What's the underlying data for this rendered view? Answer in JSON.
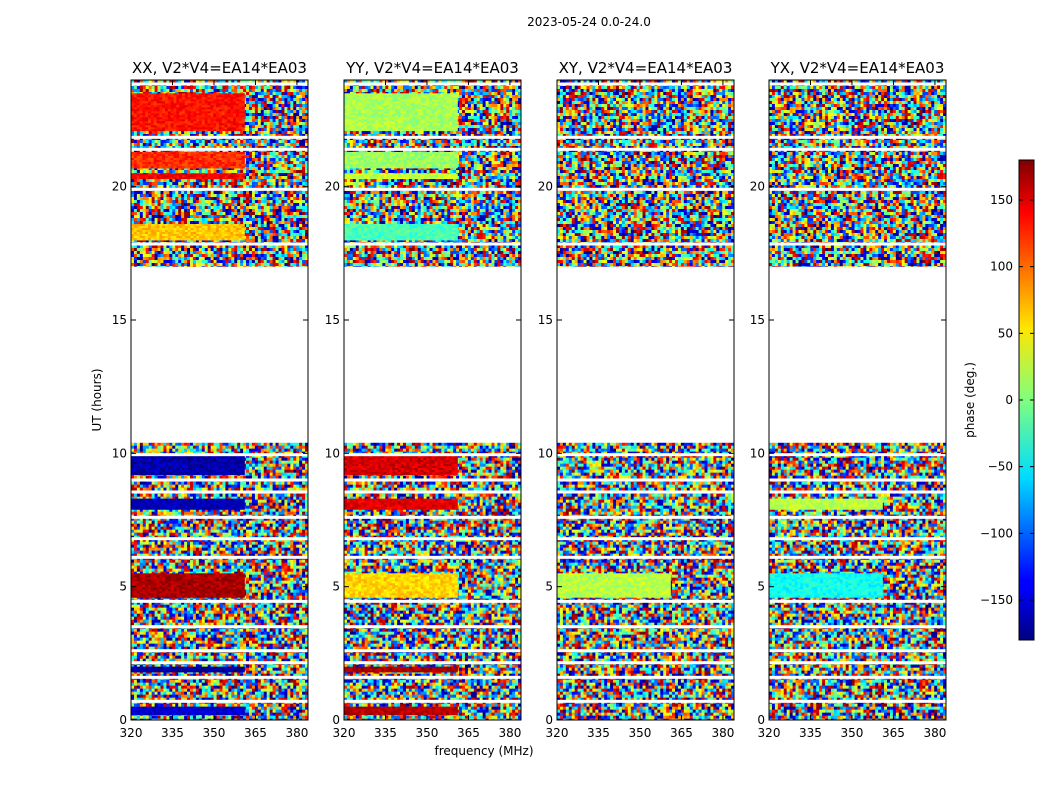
{
  "suptitle": "2023-05-24 0.0-24.0",
  "xlabel": "frequency (MHz)",
  "ylabel": "UT (hours)",
  "colorbar_label": "phase (deg.)",
  "colorbar_ticks": [
    "150",
    "100",
    "50",
    "0",
    "−50",
    "−100",
    "−150"
  ],
  "chart_data": {
    "type": "heatmap",
    "title": "2023-05-24 0.0-24.0",
    "xlabel": "frequency (MHz)",
    "ylabel": "UT (hours)",
    "xlim": [
      320,
      384
    ],
    "ylim": [
      0,
      24
    ],
    "x_ticks": [
      320,
      335,
      350,
      365,
      380
    ],
    "y_ticks": [
      0,
      5,
      10,
      15,
      20
    ],
    "colorbar": {
      "label": "phase (deg.)",
      "range": [
        -180,
        180
      ],
      "ticks": [
        150,
        100,
        50,
        0,
        -50,
        -100,
        -150
      ],
      "colormap": "jet"
    },
    "flagged_gap_hours": [
      10.4,
      17.0
    ],
    "panels": [
      {
        "title": "XX, V2*V4=EA14*EA03",
        "coherent_phase_bands": [
          {
            "ut": [
              4.6,
              5.5
            ],
            "freq_end": 361,
            "phase": 165
          },
          {
            "ut": [
              7.9,
              8.3
            ],
            "freq_end": 361,
            "phase": -160
          },
          {
            "ut": [
              9.2,
              9.9
            ],
            "freq_end": 361,
            "phase": -165
          },
          {
            "ut": [
              1.8,
              2.0
            ],
            "freq_end": 361,
            "phase": -170
          },
          {
            "ut": [
              0.2,
              0.5
            ],
            "freq_end": 361,
            "phase": -150
          },
          {
            "ut": [
              18.0,
              18.6
            ],
            "freq_end": 361,
            "phase": 65
          },
          {
            "ut": [
              20.3,
              20.5
            ],
            "freq_end": 361,
            "phase": 140
          },
          {
            "ut": [
              20.7,
              21.3
            ],
            "freq_end": 361,
            "phase": 120
          },
          {
            "ut": [
              22.1,
              23.5
            ],
            "freq_end": 361,
            "phase": 130
          }
        ]
      },
      {
        "title": "YY, V2*V4=EA14*EA03",
        "coherent_phase_bands": [
          {
            "ut": [
              4.6,
              5.5
            ],
            "freq_end": 361,
            "phase": 60
          },
          {
            "ut": [
              7.9,
              8.3
            ],
            "freq_end": 361,
            "phase": 145
          },
          {
            "ut": [
              9.2,
              9.9
            ],
            "freq_end": 361,
            "phase": 150
          },
          {
            "ut": [
              1.8,
              2.0
            ],
            "freq_end": 361,
            "phase": 165
          },
          {
            "ut": [
              0.2,
              0.5
            ],
            "freq_end": 361,
            "phase": 160
          },
          {
            "ut": [
              18.0,
              18.6
            ],
            "freq_end": 361,
            "phase": -20
          },
          {
            "ut": [
              20.3,
              20.5
            ],
            "freq_end": 361,
            "phase": 25
          },
          {
            "ut": [
              20.7,
              21.3
            ],
            "freq_end": 361,
            "phase": 10
          },
          {
            "ut": [
              22.1,
              23.5
            ],
            "freq_end": 361,
            "phase": 15
          }
        ]
      },
      {
        "title": "XY, V2*V4=EA14*EA03",
        "coherent_phase_bands": [
          {
            "ut": [
              4.6,
              5.5
            ],
            "freq_end": 361,
            "phase": 20
          }
        ]
      },
      {
        "title": "YX, V2*V4=EA14*EA03",
        "coherent_phase_bands": [
          {
            "ut": [
              4.6,
              5.5
            ],
            "freq_end": 361,
            "phase": -40
          },
          {
            "ut": [
              7.9,
              8.3
            ],
            "freq_end": 361,
            "phase": 20
          }
        ]
      }
    ]
  }
}
